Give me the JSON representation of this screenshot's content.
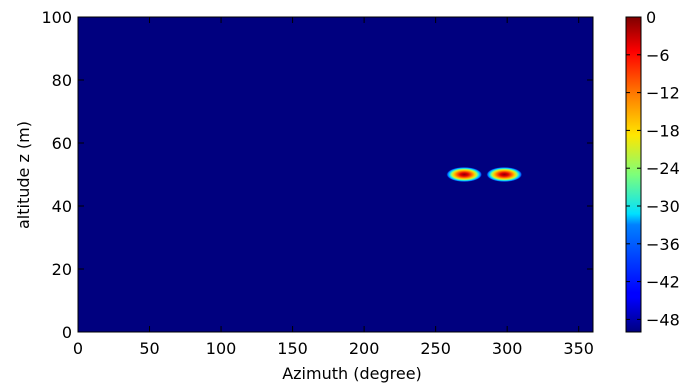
{
  "chart_data": {
    "type": "heatmap",
    "title": "",
    "xlabel": "Azimuth (degree)",
    "ylabel": "altitude z (m)",
    "xlim": [
      0,
      360
    ],
    "ylim": [
      0,
      100
    ],
    "xticks": [
      0,
      50,
      100,
      150,
      200,
      250,
      300,
      350
    ],
    "yticks": [
      0,
      20,
      40,
      60,
      80,
      100
    ],
    "background_value": -50,
    "colormap": "jet",
    "colorbar": {
      "range": [
        -50,
        0
      ],
      "ticks": [
        0,
        -6,
        -12,
        -18,
        -24,
        -30,
        -36,
        -42,
        -48
      ],
      "tick_labels": [
        "0",
        "−6",
        "−12",
        "−18",
        "−24",
        "−30",
        "−36",
        "−42",
        "−48"
      ]
    },
    "hotspots": [
      {
        "azimuth": 270,
        "altitude": 50,
        "peak_value": 0
      },
      {
        "azimuth": 298,
        "altitude": 50,
        "peak_value": 0
      }
    ],
    "grid": false
  }
}
